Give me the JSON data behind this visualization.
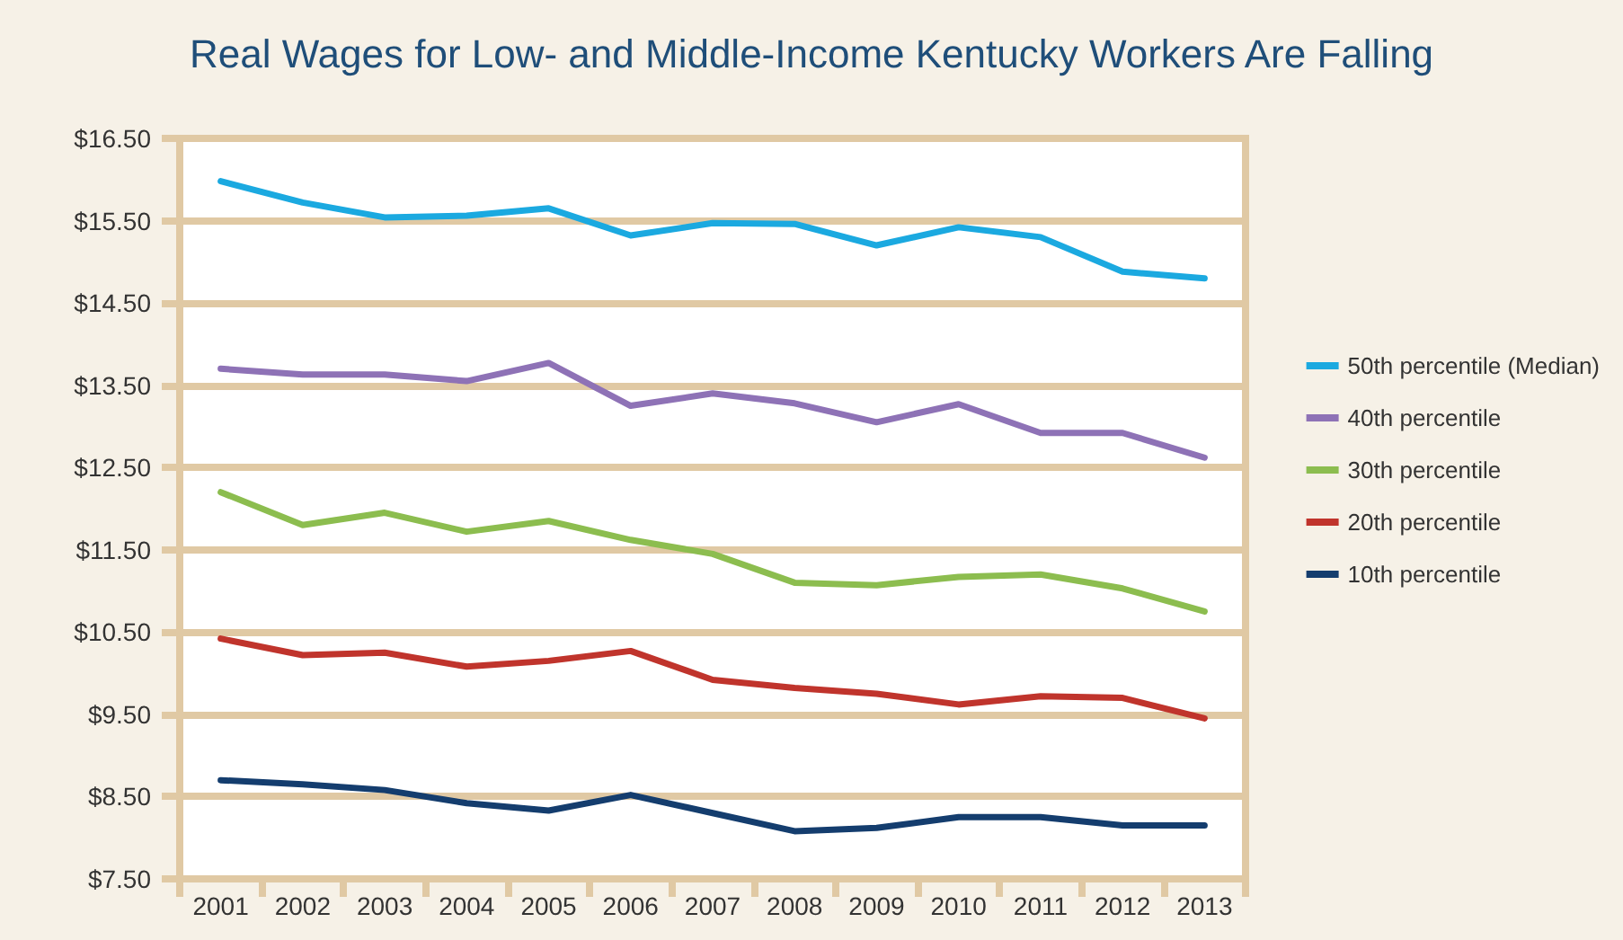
{
  "chart_data": {
    "type": "line",
    "title": "Real Wages for Low- and Middle-Income Kentucky Workers Are Falling",
    "categories": [
      "2001",
      "2002",
      "2003",
      "2004",
      "2005",
      "2006",
      "2007",
      "2008",
      "2009",
      "2010",
      "2011",
      "2012",
      "2013"
    ],
    "series": [
      {
        "name": "50th percentile (Median)",
        "color": "#1ba9e0",
        "values": [
          15.98,
          15.72,
          15.54,
          15.56,
          15.65,
          15.32,
          15.47,
          15.46,
          15.2,
          15.42,
          15.3,
          14.88,
          14.8
        ]
      },
      {
        "name": "40th percentile",
        "color": "#8e72b6",
        "values": [
          13.7,
          13.63,
          13.63,
          13.55,
          13.77,
          13.25,
          13.4,
          13.28,
          13.05,
          13.27,
          12.92,
          12.92,
          12.62
        ]
      },
      {
        "name": "30th percentile",
        "color": "#8cbd4f",
        "values": [
          12.2,
          11.8,
          11.95,
          11.72,
          11.85,
          11.62,
          11.45,
          11.1,
          11.07,
          11.17,
          11.2,
          11.03,
          10.75
        ]
      },
      {
        "name": "20th percentile",
        "color": "#c0342c",
        "values": [
          10.42,
          10.22,
          10.25,
          10.08,
          10.15,
          10.27,
          9.92,
          9.82,
          9.75,
          9.62,
          9.72,
          9.7,
          9.45
        ]
      },
      {
        "name": "10th percentile",
        "color": "#143d6e",
        "values": [
          8.7,
          8.65,
          8.58,
          8.42,
          8.33,
          8.52,
          8.3,
          8.08,
          8.12,
          8.25,
          8.25,
          8.15,
          8.15
        ]
      }
    ],
    "ylim": [
      7.5,
      16.5
    ],
    "yticks": [
      {
        "value": 7.5,
        "label": "$7.50"
      },
      {
        "value": 8.5,
        "label": "$8.50"
      },
      {
        "value": 9.5,
        "label": "$9.50"
      },
      {
        "value": 10.5,
        "label": "$10.50"
      },
      {
        "value": 11.5,
        "label": "$11.50"
      },
      {
        "value": 12.5,
        "label": "$12.50"
      },
      {
        "value": 13.5,
        "label": "$13.50"
      },
      {
        "value": 14.5,
        "label": "$14.50"
      },
      {
        "value": 15.5,
        "label": "$15.50"
      },
      {
        "value": 16.5,
        "label": "$16.50"
      }
    ],
    "grid": "y",
    "legend": "right",
    "marker": "none",
    "line_style": "solid"
  }
}
